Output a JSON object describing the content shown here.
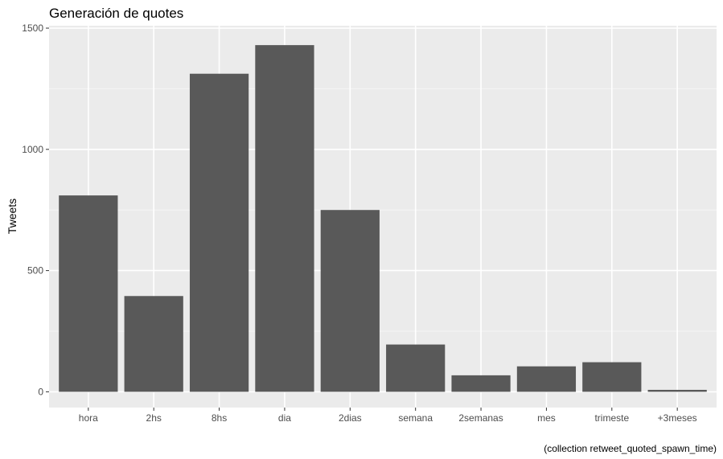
{
  "chart_data": {
    "type": "bar",
    "title": "Generación de quotes",
    "xlabel": "",
    "ylabel": "Tweets",
    "caption": "(collection retweet_quoted_spawn_time)",
    "categories": [
      "hora",
      "2hs",
      "8hs",
      "dia",
      "2dias",
      "semana",
      "2semanas",
      "mes",
      "trimeste",
      "+3meses"
    ],
    "values": [
      810,
      395,
      1312,
      1430,
      750,
      195,
      68,
      105,
      122,
      8
    ],
    "ylim": [
      -65,
      1510
    ],
    "yticks": [
      0,
      500,
      1000,
      1500
    ],
    "grid": true,
    "legend": "none",
    "colors": {
      "bar": "#595959",
      "panel": "#ebebeb",
      "grid_major": "#ffffff",
      "grid_minor": "#f5f5f5",
      "tick_text": "#4d4d4d"
    }
  }
}
